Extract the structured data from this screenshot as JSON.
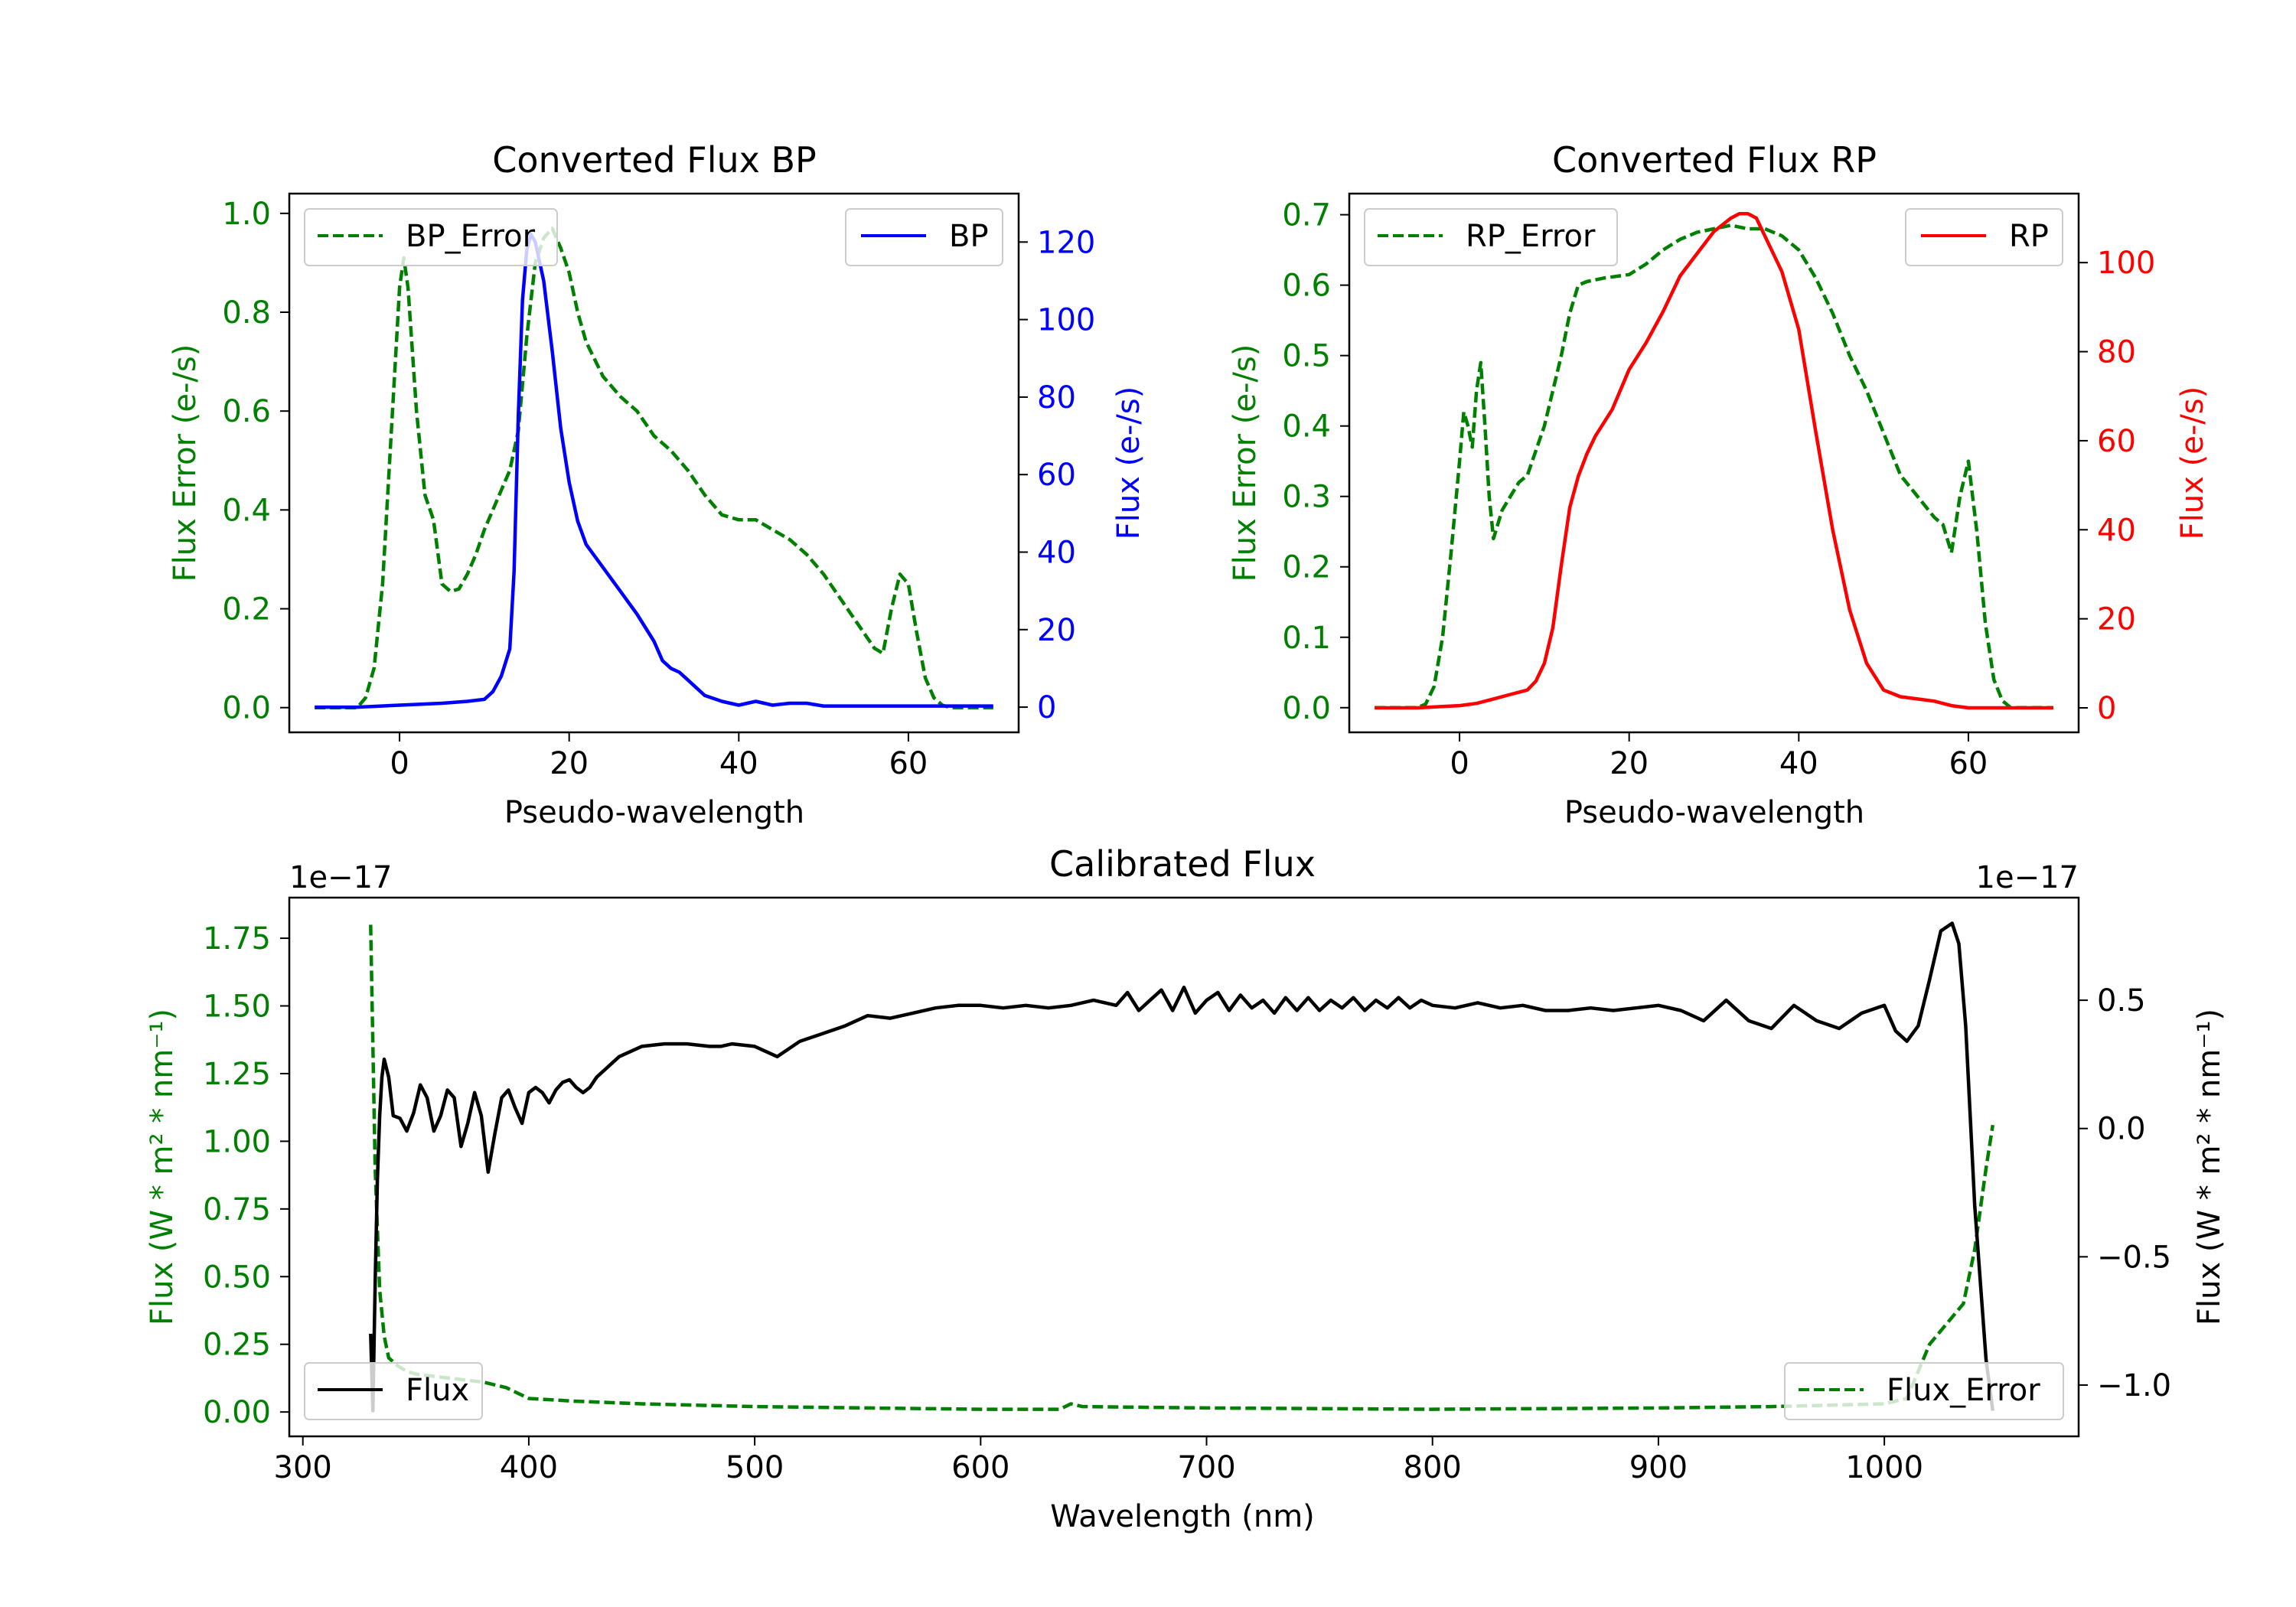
{
  "colors": {
    "bp": "#0000ff",
    "rp": "#ff0000",
    "error": "#008000",
    "flux": "#000000",
    "axis": "#000000"
  },
  "chart_data": [
    {
      "type": "line",
      "title": "Converted Flux BP",
      "xlabel": "Pseudo-wavelength",
      "ylabel_left": "Flux Error (e-/s)",
      "ylabel_right": "Flux (e-/s)",
      "xlim": [
        -13,
        73
      ],
      "ylim_left": [
        -0.05,
        1.04
      ],
      "ylim_right": [
        -6.5,
        132.5
      ],
      "xticks": [
        "0",
        "20",
        "40",
        "60"
      ],
      "yticks_left": [
        "0.0",
        "0.2",
        "0.4",
        "0.6",
        "0.8",
        "1.0"
      ],
      "yticks_right": [
        "0",
        "20",
        "40",
        "60",
        "80",
        "100",
        "120"
      ],
      "legend_left": "BP_Error",
      "legend_right": "BP",
      "series": [
        {
          "name": "BP_Error",
          "axis": "left",
          "style": "dashed",
          "color": "error",
          "x": [
            -10,
            -5,
            -4,
            -3,
            -2,
            -1,
            0,
            0.5,
            1,
            2,
            3,
            4,
            5,
            6,
            7,
            8,
            9,
            10,
            12,
            13,
            14,
            15,
            16,
            17,
            18,
            19,
            20,
            21,
            22,
            24,
            26,
            28,
            30,
            32,
            34,
            36,
            38,
            40,
            42,
            44,
            46,
            48,
            50,
            52,
            54,
            56,
            57,
            58,
            59,
            60,
            61,
            62,
            63,
            64,
            65,
            66,
            70
          ],
          "y": [
            0.0,
            0.0,
            0.02,
            0.08,
            0.25,
            0.55,
            0.85,
            0.91,
            0.85,
            0.6,
            0.43,
            0.38,
            0.25,
            0.235,
            0.24,
            0.27,
            0.31,
            0.36,
            0.44,
            0.48,
            0.56,
            0.75,
            0.9,
            0.95,
            0.97,
            0.93,
            0.88,
            0.8,
            0.74,
            0.67,
            0.63,
            0.6,
            0.55,
            0.52,
            0.48,
            0.43,
            0.39,
            0.38,
            0.38,
            0.36,
            0.34,
            0.31,
            0.27,
            0.22,
            0.17,
            0.12,
            0.11,
            0.2,
            0.27,
            0.25,
            0.15,
            0.06,
            0.02,
            0.005,
            0.0,
            0.0,
            0.0
          ]
        },
        {
          "name": "BP",
          "axis": "right",
          "style": "solid",
          "color": "bp",
          "x": [
            -10,
            -5,
            0,
            5,
            8,
            10,
            11,
            12,
            13,
            13.5,
            14,
            14.5,
            15,
            15.5,
            16,
            17,
            18,
            19,
            20,
            21,
            22,
            24,
            26,
            28,
            30,
            31,
            32,
            33,
            34,
            35,
            36,
            38,
            40,
            42,
            44,
            46,
            48,
            50,
            52,
            54,
            56,
            58,
            60,
            62,
            65,
            70
          ],
          "y": [
            0,
            0,
            0.5,
            1,
            1.5,
            2,
            4,
            8,
            15,
            35,
            75,
            105,
            118,
            122,
            120,
            110,
            92,
            72,
            58,
            48,
            42,
            36,
            30,
            24,
            17,
            12,
            10,
            9,
            7,
            5,
            3,
            1.5,
            0.5,
            1.5,
            0.5,
            1,
            1,
            0.3,
            0.3,
            0.3,
            0.3,
            0.3,
            0.3,
            0.3,
            0.3,
            0.3
          ]
        }
      ]
    },
    {
      "type": "line",
      "title": "Converted Flux RP",
      "xlabel": "Pseudo-wavelength",
      "ylabel_left": "Flux Error (e-/s)",
      "ylabel_right": "Flux (e-/s)",
      "xlim": [
        -13,
        73
      ],
      "ylim_left": [
        -0.035,
        0.73
      ],
      "ylim_right": [
        -5.5,
        115.5
      ],
      "xticks": [
        "0",
        "20",
        "40",
        "60"
      ],
      "yticks_left": [
        "0.0",
        "0.1",
        "0.2",
        "0.3",
        "0.4",
        "0.5",
        "0.6",
        "0.7"
      ],
      "yticks_right": [
        "0",
        "20",
        "40",
        "60",
        "80",
        "100"
      ],
      "legend_left": "RP_Error",
      "legend_right": "RP",
      "series": [
        {
          "name": "RP_Error",
          "axis": "left",
          "style": "dashed",
          "color": "error",
          "x": [
            -10,
            -5,
            -4,
            -3,
            -2,
            -1,
            0,
            0.5,
            1,
            1.5,
            2,
            2.5,
            3,
            3.5,
            4,
            5,
            6,
            7,
            8,
            10,
            12,
            13,
            14,
            15,
            17,
            20,
            22,
            24,
            26,
            28,
            30,
            32,
            34,
            36,
            38,
            40,
            42,
            44,
            46,
            48,
            50,
            52,
            54,
            56,
            57,
            58,
            59,
            60,
            61,
            62,
            63,
            64,
            65,
            70
          ],
          "y": [
            0.0,
            0.0,
            0.005,
            0.03,
            0.1,
            0.22,
            0.35,
            0.42,
            0.4,
            0.37,
            0.45,
            0.49,
            0.4,
            0.3,
            0.24,
            0.28,
            0.3,
            0.32,
            0.33,
            0.4,
            0.5,
            0.56,
            0.6,
            0.605,
            0.61,
            0.615,
            0.63,
            0.65,
            0.665,
            0.675,
            0.68,
            0.685,
            0.68,
            0.68,
            0.67,
            0.65,
            0.61,
            0.56,
            0.5,
            0.45,
            0.39,
            0.33,
            0.3,
            0.27,
            0.26,
            0.22,
            0.3,
            0.35,
            0.25,
            0.12,
            0.04,
            0.01,
            0.0,
            0.0
          ]
        },
        {
          "name": "RP",
          "axis": "right",
          "style": "solid",
          "color": "rp",
          "x": [
            -10,
            -5,
            0,
            2,
            4,
            6,
            8,
            9,
            10,
            11,
            12,
            13,
            14,
            15,
            16,
            18,
            20,
            22,
            24,
            26,
            28,
            30,
            32,
            33,
            34,
            35,
            36,
            38,
            40,
            42,
            44,
            46,
            48,
            50,
            52,
            54,
            56,
            58,
            60,
            62,
            65,
            70
          ],
          "y": [
            0,
            0,
            0.5,
            1,
            2,
            3,
            4,
            6,
            10,
            18,
            32,
            45,
            52,
            57,
            61,
            67,
            76,
            82,
            89,
            97,
            102,
            107,
            110,
            111,
            111,
            110,
            106,
            98,
            85,
            62,
            40,
            22,
            10,
            4,
            2.5,
            2,
            1.5,
            0.5,
            0,
            0,
            0,
            0
          ]
        }
      ]
    },
    {
      "type": "line",
      "title": "Calibrated Flux",
      "xlabel": "Wavelength (nm)",
      "ylabel_left": "Flux (W * m² * nm⁻¹)",
      "ylabel_right": "Flux (W * m² * nm⁻¹)",
      "offset_left": "1e−17",
      "offset_right": "1e−17",
      "xlim": [
        294,
        1086
      ],
      "ylim_left": [
        -0.09,
        1.9
      ],
      "ylim_right": [
        -1.2,
        0.9
      ],
      "xticks": [
        "300",
        "400",
        "500",
        "600",
        "700",
        "800",
        "900",
        "1000"
      ],
      "yticks_left": [
        "0.00",
        "0.25",
        "0.50",
        "0.75",
        "1.00",
        "1.25",
        "1.50",
        "1.75"
      ],
      "yticks_right": [
        "−1.0",
        "−0.5",
        "0.0",
        "0.5"
      ],
      "legend_left": "Flux",
      "legend_right": "Flux_Error",
      "series": [
        {
          "name": "Flux_Error",
          "axis": "left",
          "style": "dashed",
          "color": "error",
          "x": [
            330,
            332,
            334,
            336,
            338,
            342,
            346,
            350,
            360,
            370,
            380,
            390,
            400,
            420,
            450,
            500,
            550,
            600,
            635,
            640,
            645,
            700,
            800,
            900,
            950,
            1000,
            1010,
            1015,
            1020,
            1025,
            1030,
            1035,
            1040,
            1045,
            1048
          ],
          "y": [
            1.8,
            0.9,
            0.45,
            0.28,
            0.2,
            0.17,
            0.15,
            0.14,
            0.13,
            0.12,
            0.11,
            0.09,
            0.05,
            0.04,
            0.03,
            0.02,
            0.015,
            0.01,
            0.01,
            0.03,
            0.02,
            0.015,
            0.01,
            0.015,
            0.02,
            0.03,
            0.05,
            0.15,
            0.25,
            0.3,
            0.35,
            0.4,
            0.6,
            0.9,
            1.06
          ]
        },
        {
          "name": "Flux",
          "axis": "right",
          "style": "solid",
          "color": "flux",
          "x": [
            330,
            331,
            332,
            333,
            334,
            335,
            336,
            338,
            340,
            343,
            346,
            349,
            352,
            355,
            358,
            361,
            364,
            367,
            370,
            373,
            376,
            379,
            382,
            385,
            388,
            391,
            394,
            397,
            400,
            403,
            406,
            409,
            412,
            415,
            418,
            421,
            424,
            427,
            430,
            440,
            450,
            460,
            470,
            480,
            485,
            490,
            500,
            510,
            520,
            530,
            540,
            550,
            560,
            570,
            580,
            590,
            600,
            610,
            620,
            630,
            640,
            650,
            660,
            665,
            670,
            675,
            680,
            685,
            690,
            695,
            700,
            705,
            710,
            715,
            720,
            725,
            730,
            735,
            740,
            745,
            750,
            755,
            760,
            765,
            770,
            775,
            780,
            785,
            790,
            795,
            800,
            810,
            820,
            830,
            840,
            850,
            860,
            870,
            880,
            890,
            900,
            910,
            920,
            930,
            940,
            950,
            960,
            970,
            980,
            990,
            1000,
            1005,
            1010,
            1015,
            1020,
            1025,
            1030,
            1033,
            1036,
            1040,
            1045,
            1048
          ],
          "y": [
            -0.8,
            -1.1,
            -0.6,
            -0.2,
            0.05,
            0.2,
            0.27,
            0.2,
            0.05,
            0.04,
            -0.01,
            0.06,
            0.17,
            0.12,
            -0.01,
            0.05,
            0.15,
            0.12,
            -0.07,
            0.02,
            0.14,
            0.05,
            -0.17,
            -0.02,
            0.12,
            0.15,
            0.08,
            0.02,
            0.14,
            0.16,
            0.14,
            0.1,
            0.15,
            0.18,
            0.19,
            0.16,
            0.14,
            0.16,
            0.2,
            0.28,
            0.32,
            0.33,
            0.33,
            0.32,
            0.32,
            0.33,
            0.32,
            0.28,
            0.34,
            0.37,
            0.4,
            0.44,
            0.43,
            0.45,
            0.47,
            0.48,
            0.48,
            0.47,
            0.48,
            0.47,
            0.48,
            0.5,
            0.48,
            0.53,
            0.46,
            0.5,
            0.54,
            0.46,
            0.55,
            0.45,
            0.5,
            0.53,
            0.46,
            0.52,
            0.47,
            0.5,
            0.45,
            0.51,
            0.46,
            0.51,
            0.46,
            0.5,
            0.47,
            0.51,
            0.46,
            0.5,
            0.47,
            0.51,
            0.47,
            0.5,
            0.48,
            0.47,
            0.49,
            0.47,
            0.48,
            0.46,
            0.46,
            0.47,
            0.46,
            0.47,
            0.48,
            0.46,
            0.42,
            0.5,
            0.42,
            0.39,
            0.48,
            0.42,
            0.39,
            0.45,
            0.48,
            0.38,
            0.34,
            0.4,
            0.58,
            0.77,
            0.8,
            0.72,
            0.4,
            -0.3,
            -0.9,
            -1.1
          ]
        }
      ]
    }
  ]
}
